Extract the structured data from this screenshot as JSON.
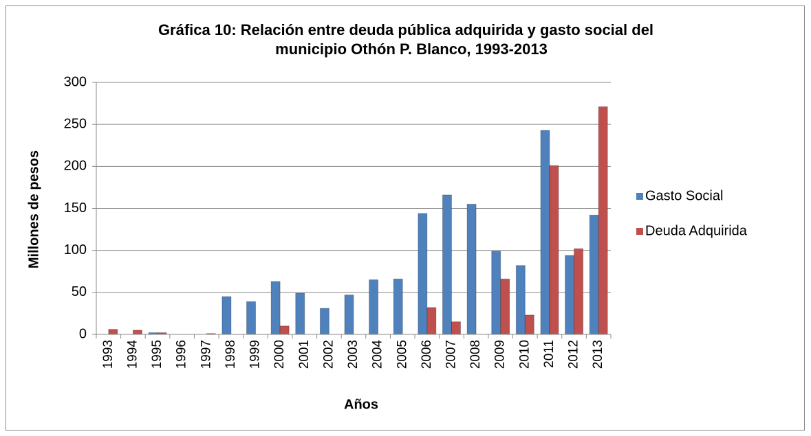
{
  "chart_data": {
    "type": "bar",
    "title": [
      "Gráfica 10: Relación entre deuda pública adquirida y gasto social del",
      "municipio Othón P. Blanco, 1993-2013"
    ],
    "x_label": "Años",
    "y_label": "Millones de pesos",
    "categories": [
      "1993",
      "1994",
      "1995",
      "1996",
      "1997",
      "1998",
      "1999",
      "2000",
      "2001",
      "2002",
      "2003",
      "2004",
      "2005",
      "2006",
      "2007",
      "2008",
      "2009",
      "2010",
      "2011",
      "2012",
      "2013"
    ],
    "series": [
      {
        "name": "Gasto Social",
        "color": "#4f81bd",
        "values": [
          0,
          0,
          2,
          0,
          0,
          45,
          39,
          63,
          49,
          31,
          47,
          65,
          66,
          144,
          166,
          155,
          99,
          82,
          243,
          94,
          142
        ]
      },
      {
        "name": "Deuda Adquirida",
        "color": "#c0504d",
        "values": [
          6,
          5,
          2,
          0,
          1,
          0,
          0,
          10,
          0,
          0,
          0,
          0,
          0,
          32,
          15,
          0,
          66,
          23,
          201,
          102,
          271
        ]
      }
    ],
    "ylim": [
      0,
      300
    ],
    "yticks": [
      0,
      50,
      100,
      150,
      200,
      250,
      300
    ],
    "grid": true,
    "legend": "right"
  }
}
